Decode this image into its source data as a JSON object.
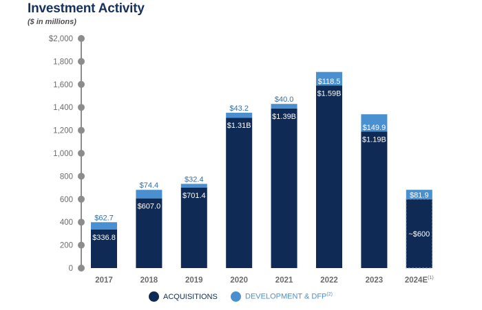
{
  "header": {
    "title": "Investment Activity",
    "subtitle": "($ in millions)"
  },
  "colors": {
    "acquisitions": "#0f2a54",
    "development": "#4a90d0",
    "axis": "#8c8c8c",
    "tick_text": "#6b6b6b"
  },
  "legend": {
    "acquisitions_label": "ACQUISITIONS",
    "development_label": "DEVELOPMENT & DFP",
    "development_footnote": "(2)"
  },
  "chart_data": {
    "type": "bar",
    "stacked": true,
    "title": "Investment Activity",
    "subtitle": "($ in millions)",
    "categories": [
      "2017",
      "2018",
      "2019",
      "2020",
      "2021",
      "2022",
      "2023",
      "2024E"
    ],
    "category_footnotes": {
      "2024E": "(1)"
    },
    "yticks": [
      0,
      200,
      400,
      600,
      800,
      1000,
      1200,
      1400,
      1600,
      1800,
      2000
    ],
    "ytick_labels": [
      "0",
      "200",
      "400",
      "600",
      "800",
      "1,000",
      "1,200",
      "1,400",
      "1,600",
      "1,800",
      "$2,000"
    ],
    "ylim": [
      0,
      2000
    ],
    "grid": false,
    "legend_position": "bottom",
    "series": [
      {
        "name": "ACQUISITIONS",
        "values": [
          336.8,
          607.0,
          701.4,
          1310,
          1390,
          1590,
          1190,
          600
        ],
        "labels": [
          "$336.8",
          "$607.0",
          "$701.4",
          "$1.31B",
          "$1.39B",
          "$1.59B",
          "$1.19B",
          "~$600"
        ],
        "estimated_last": true
      },
      {
        "name": "DEVELOPMENT & DFP",
        "values": [
          62.7,
          74.4,
          32.4,
          43.2,
          40.0,
          118.5,
          149.9,
          81.9
        ],
        "labels": [
          "$62.7",
          "$74.4",
          "$32.4",
          "$43.2",
          "$40.0",
          "$118.5",
          "$149.9",
          "$81.9"
        ]
      }
    ]
  }
}
